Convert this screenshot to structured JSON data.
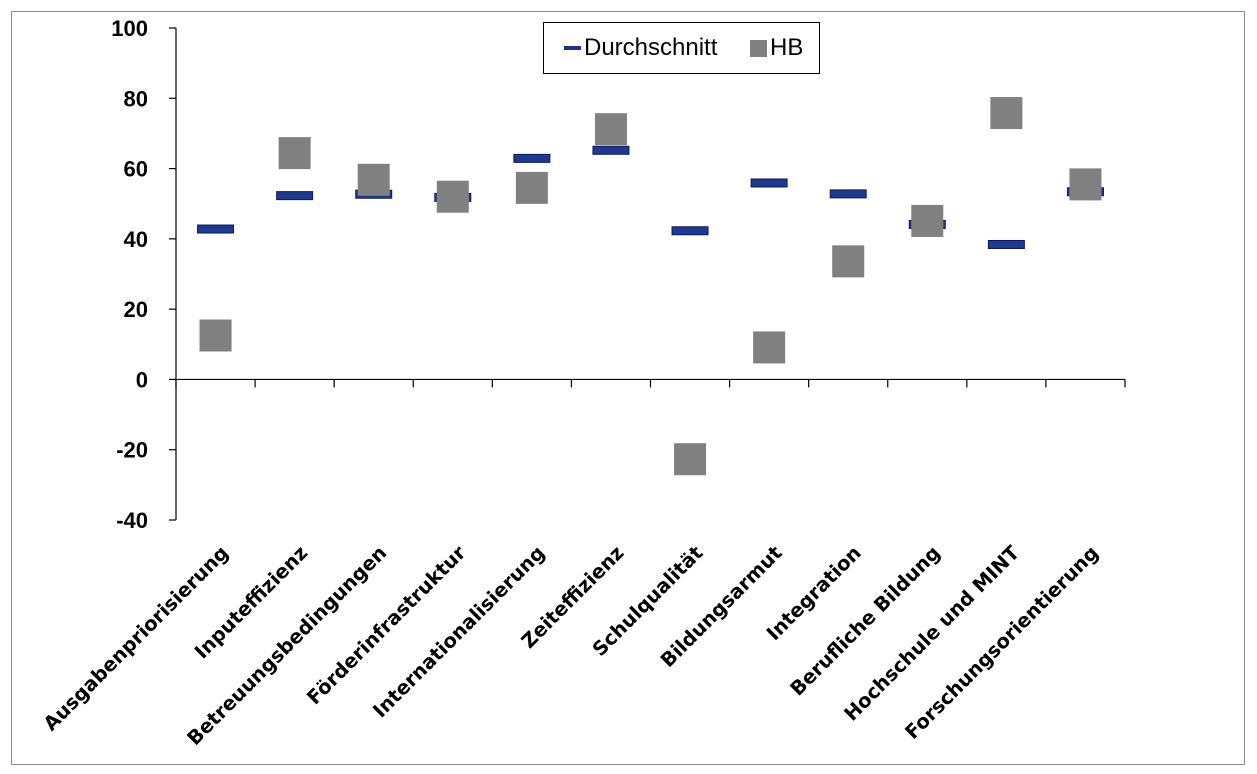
{
  "chart_data": {
    "type": "scatter",
    "title": "",
    "xlabel": "",
    "ylabel": "",
    "ylim": [
      -40,
      100
    ],
    "yticks": [
      "100",
      "80",
      "60",
      "40",
      "20",
      "0",
      "-20",
      "-40"
    ],
    "categories": [
      "Ausgabenpriorisierung",
      "Inputeffizienz",
      "Betreuungsbedingungen",
      "Förderinfrastruktur",
      "Internationalisierung",
      "Zeiteffizienz",
      "Schulqualität",
      "Bildungsarmut",
      "Integration",
      "Berufliche Bildung",
      "Hochschule und MINT",
      "Forschungsorientierung"
    ],
    "series": [
      {
        "name": "Durchschnitt",
        "marker": "dash",
        "color": "#1f3a8c",
        "values": [
          42.8,
          52.3,
          52.7,
          51.8,
          62.9,
          65.2,
          42.3,
          55.9,
          52.8,
          44.1,
          38.4,
          53.4
        ]
      },
      {
        "name": "HB",
        "marker": "square",
        "color": "#808080",
        "values": [
          12.5,
          64.4,
          56.8,
          52.0,
          54.5,
          71.2,
          -22.7,
          9.1,
          33.6,
          45.1,
          75.8,
          55.5
        ]
      }
    ],
    "legend": {
      "position": "top-center",
      "labels": [
        "Durchschnitt",
        "HB"
      ]
    },
    "grid": false
  }
}
